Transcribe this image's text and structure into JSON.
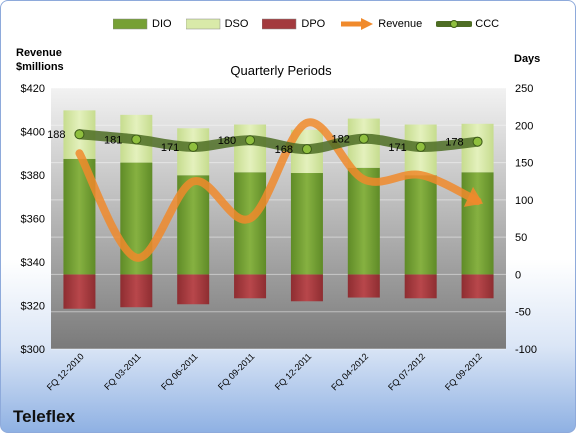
{
  "company": "Teleflex",
  "legend": [
    {
      "label": "DIO",
      "kind": "bar",
      "color": "#76a035"
    },
    {
      "label": "DSO",
      "kind": "bar",
      "color": "#d9eaa9"
    },
    {
      "label": "DPO",
      "kind": "bar",
      "color": "#a33a3e"
    },
    {
      "label": "Revenue",
      "kind": "arrow",
      "color": "#f08a2c"
    },
    {
      "label": "CCC",
      "kind": "line",
      "color": "#4e6d24"
    }
  ],
  "chart_data": {
    "type": "bar",
    "title": "Quarterly Periods",
    "left_axis_label": "Revenue\n$millions",
    "right_axis_label": "Days",
    "categories": [
      "FQ 12-2010",
      "FQ 03-2011",
      "FQ 06-2011",
      "FQ 09-2011",
      "FQ 12-2011",
      "FQ 04-2012",
      "FQ 07-2012",
      "FQ 09-2012"
    ],
    "left_axis": {
      "min": 300,
      "max": 420,
      "step": 20,
      "prefix": "$"
    },
    "right_axis": {
      "min": -100,
      "max": 250,
      "step": 50
    },
    "series": [
      {
        "name": "DIO",
        "axis": "right",
        "values": [
          155,
          150,
          133,
          137,
          136,
          143,
          133,
          137
        ]
      },
      {
        "name": "DSO",
        "axis": "right",
        "values": [
          65,
          64,
          63,
          64,
          58,
          66,
          68,
          65
        ]
      },
      {
        "name": "DPO",
        "axis": "right",
        "values": [
          -46,
          -44,
          -40,
          -32,
          -36,
          -31,
          -32,
          -32
        ]
      },
      {
        "name": "Revenue",
        "axis": "left",
        "values": [
          390,
          342,
          377,
          360,
          404,
          378,
          380,
          368
        ]
      },
      {
        "name": "CCC",
        "axis": "right",
        "values": [
          188,
          181,
          171,
          180,
          168,
          182,
          171,
          178
        ]
      }
    ],
    "ccc_labels": [
      "188",
      "181",
      "171",
      "180",
      "168",
      "182",
      "171",
      "178"
    ],
    "grid": true
  }
}
